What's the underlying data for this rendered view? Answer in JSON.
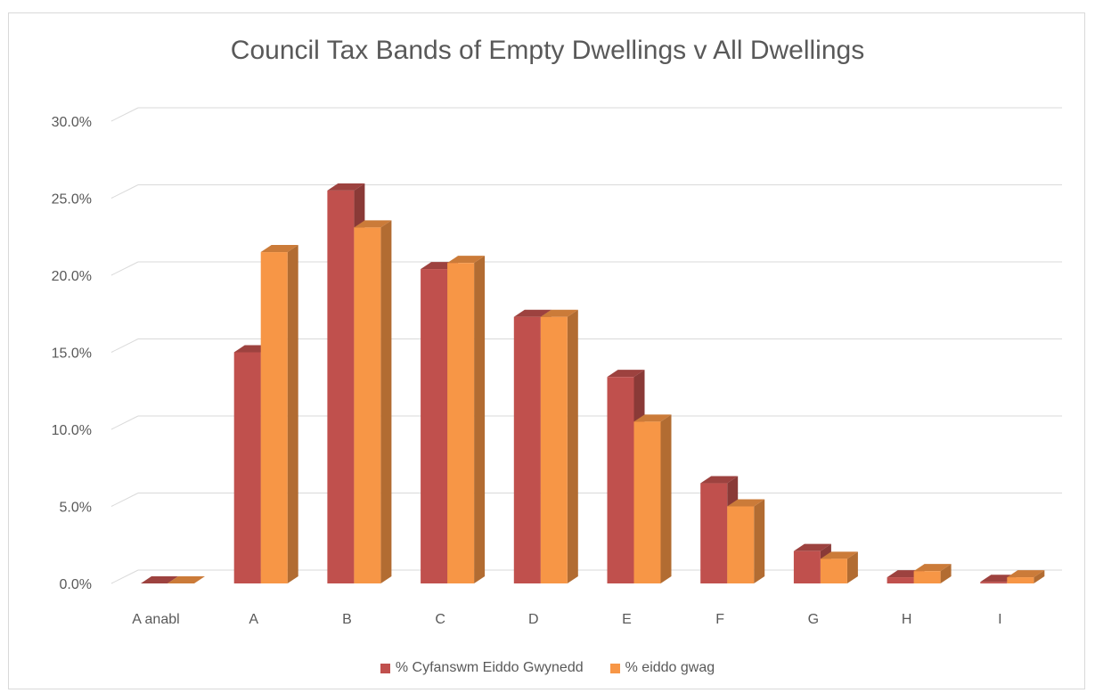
{
  "chart_data": {
    "type": "bar",
    "title": "Council Tax Bands of Empty Dwellings v All Dwellings",
    "categories": [
      "A anabl",
      "A",
      "B",
      "C",
      "D",
      "E",
      "F",
      "G",
      "H",
      "I"
    ],
    "series": [
      {
        "name": "% Cyfanswm Eiddo Gwynedd",
        "color": "#c0504d",
        "values": [
          0.0,
          15.0,
          25.5,
          20.4,
          17.3,
          13.4,
          6.5,
          2.1,
          0.4,
          0.1
        ]
      },
      {
        "name": "% eiddo gwag",
        "color": "#f79646",
        "values": [
          0.0,
          21.5,
          23.1,
          20.8,
          17.3,
          10.5,
          5.0,
          1.6,
          0.8,
          0.4
        ]
      }
    ],
    "yticks": [
      "0.0%",
      "5.0%",
      "10.0%",
      "15.0%",
      "20.0%",
      "25.0%",
      "30.0%"
    ],
    "ylim": [
      0,
      30
    ],
    "grid": true,
    "legend": "bottom"
  }
}
